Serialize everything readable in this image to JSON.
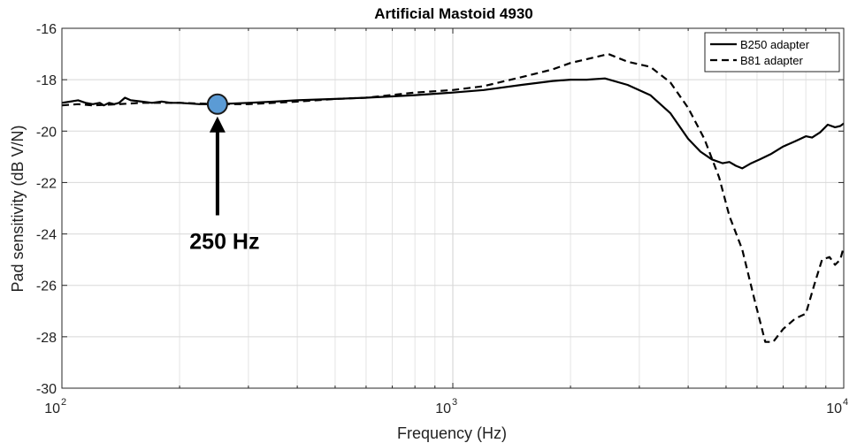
{
  "chart_data": {
    "type": "line",
    "title": "Artificial Mastoid 4930",
    "xlabel": "Frequency (Hz)",
    "ylabel": "Pad sensitivity (dB V/N)",
    "xscale": "log",
    "xlim": [
      100,
      10000
    ],
    "ylim": [
      -30,
      -16
    ],
    "grid": true,
    "legend_position": "top-right",
    "x_tick_labels": [
      {
        "base": "10",
        "exp": "2",
        "value": 100
      },
      {
        "base": "10",
        "exp": "3",
        "value": 1000
      },
      {
        "base": "10",
        "exp": "4",
        "value": 10000
      }
    ],
    "y_ticks": [
      -16,
      -18,
      -20,
      -22,
      -24,
      -26,
      -28,
      -30
    ],
    "series": [
      {
        "name": "B250 adapter",
        "style": "solid",
        "color": "#000000",
        "points": [
          [
            100,
            -18.9
          ],
          [
            105,
            -18.85
          ],
          [
            110,
            -18.8
          ],
          [
            115,
            -18.9
          ],
          [
            120,
            -18.95
          ],
          [
            125,
            -18.9
          ],
          [
            128,
            -19.0
          ],
          [
            132,
            -18.9
          ],
          [
            136,
            -18.95
          ],
          [
            140,
            -18.9
          ],
          [
            145,
            -18.7
          ],
          [
            150,
            -18.8
          ],
          [
            160,
            -18.85
          ],
          [
            170,
            -18.9
          ],
          [
            180,
            -18.85
          ],
          [
            190,
            -18.9
          ],
          [
            200,
            -18.9
          ],
          [
            225,
            -18.95
          ],
          [
            250,
            -18.95
          ],
          [
            300,
            -18.9
          ],
          [
            350,
            -18.85
          ],
          [
            400,
            -18.8
          ],
          [
            500,
            -18.75
          ],
          [
            600,
            -18.7
          ],
          [
            700,
            -18.65
          ],
          [
            800,
            -18.6
          ],
          [
            1000,
            -18.5
          ],
          [
            1200,
            -18.4
          ],
          [
            1500,
            -18.2
          ],
          [
            1800,
            -18.05
          ],
          [
            2000,
            -18.0
          ],
          [
            2200,
            -18.0
          ],
          [
            2450,
            -17.95
          ],
          [
            2800,
            -18.2
          ],
          [
            3200,
            -18.6
          ],
          [
            3600,
            -19.3
          ],
          [
            4000,
            -20.3
          ],
          [
            4300,
            -20.8
          ],
          [
            4600,
            -21.1
          ],
          [
            4900,
            -21.25
          ],
          [
            5100,
            -21.2
          ],
          [
            5300,
            -21.35
          ],
          [
            5500,
            -21.45
          ],
          [
            5800,
            -21.25
          ],
          [
            6100,
            -21.1
          ],
          [
            6500,
            -20.9
          ],
          [
            7000,
            -20.6
          ],
          [
            7500,
            -20.4
          ],
          [
            8000,
            -20.2
          ],
          [
            8300,
            -20.25
          ],
          [
            8700,
            -20.05
          ],
          [
            9100,
            -19.75
          ],
          [
            9500,
            -19.85
          ],
          [
            9800,
            -19.8
          ],
          [
            10000,
            -19.7
          ]
        ]
      },
      {
        "name": "B81 adapter",
        "style": "dashed",
        "color": "#000000",
        "points": [
          [
            100,
            -19.0
          ],
          [
            110,
            -18.95
          ],
          [
            120,
            -19.0
          ],
          [
            140,
            -18.95
          ],
          [
            160,
            -18.9
          ],
          [
            200,
            -18.9
          ],
          [
            250,
            -18.95
          ],
          [
            300,
            -18.95
          ],
          [
            400,
            -18.85
          ],
          [
            500,
            -18.75
          ],
          [
            600,
            -18.7
          ],
          [
            800,
            -18.5
          ],
          [
            1000,
            -18.4
          ],
          [
            1200,
            -18.25
          ],
          [
            1500,
            -17.9
          ],
          [
            1800,
            -17.6
          ],
          [
            2000,
            -17.35
          ],
          [
            2200,
            -17.2
          ],
          [
            2500,
            -17.0
          ],
          [
            2800,
            -17.3
          ],
          [
            3200,
            -17.5
          ],
          [
            3600,
            -18.1
          ],
          [
            4000,
            -19.1
          ],
          [
            4400,
            -20.3
          ],
          [
            4800,
            -21.8
          ],
          [
            5100,
            -23.3
          ],
          [
            5500,
            -24.6
          ],
          [
            5900,
            -26.5
          ],
          [
            6300,
            -28.2
          ],
          [
            6600,
            -28.2
          ],
          [
            7000,
            -27.7
          ],
          [
            7500,
            -27.3
          ],
          [
            8000,
            -27.1
          ],
          [
            8400,
            -26.0
          ],
          [
            8800,
            -25.0
          ],
          [
            9200,
            -24.9
          ],
          [
            9500,
            -25.2
          ],
          [
            9800,
            -25.0
          ],
          [
            10000,
            -24.5
          ]
        ]
      }
    ],
    "marker": {
      "x": 250,
      "y": -18.95,
      "color": "#5b9bd5"
    },
    "annotations": [
      {
        "text": "250 Hz",
        "x": 250,
        "y": -24.1
      }
    ]
  }
}
